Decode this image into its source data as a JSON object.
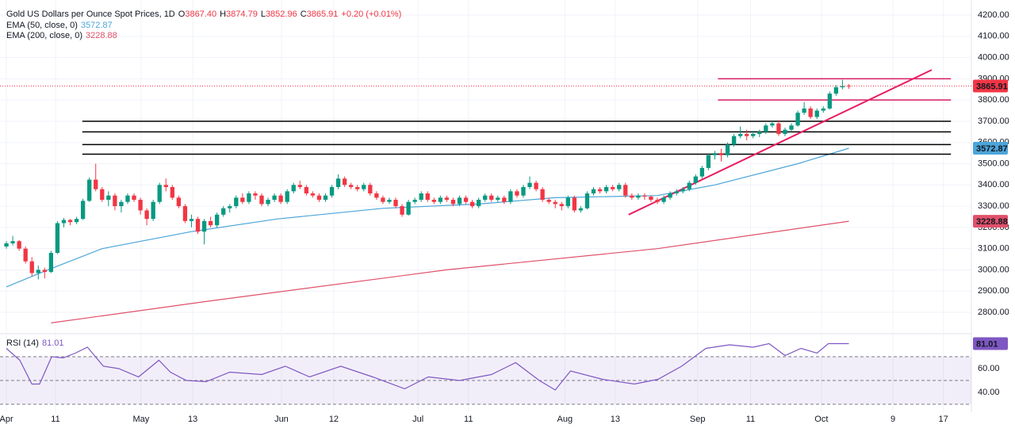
{
  "chart_data": {
    "type": "candlestick",
    "title": "Gold US Dollars per Ounce Spot Prices, 1D",
    "ohlc_prefixes": [
      "O",
      "H",
      "L",
      "C"
    ],
    "ohlc_labels": [
      "3867.40",
      "3874.79",
      "3852.96",
      "3865.91"
    ],
    "change": "+0.20 (+0.01%)",
    "up_color": "#089981",
    "down_color": "#f23645",
    "xlim": [
      -1,
      151.2
    ],
    "ylim": [
      2703,
      4271
    ],
    "yticks": [
      {
        "value": 2800,
        "label": "2800.00"
      },
      {
        "value": 2900,
        "label": "2900.00"
      },
      {
        "value": 3000,
        "label": "3000.00"
      },
      {
        "value": 3100,
        "label": "3100.00"
      },
      {
        "value": 3200,
        "label": "3200.00"
      },
      {
        "value": 3300,
        "label": "3300.00"
      },
      {
        "value": 3400,
        "label": "3400.00"
      },
      {
        "value": 3500,
        "label": "3500.00"
      },
      {
        "value": 3600,
        "label": "3600.00"
      },
      {
        "value": 3700,
        "label": "3700.00"
      },
      {
        "value": 3800,
        "label": "3800.00"
      },
      {
        "value": 3900,
        "label": "3900.00"
      },
      {
        "value": 4000,
        "label": "4000.00"
      },
      {
        "value": 4100,
        "label": "4100.00"
      },
      {
        "value": 4200,
        "label": "4200.00"
      }
    ],
    "xticks": [
      {
        "value": 0,
        "label": "Apr"
      },
      {
        "value": 7.7,
        "label": "11"
      },
      {
        "value": 21.1,
        "label": "May"
      },
      {
        "value": 29.2,
        "label": "13"
      },
      {
        "value": 43.1,
        "label": "Jun"
      },
      {
        "value": 51.3,
        "label": "12"
      },
      {
        "value": 64.5,
        "label": "Jul"
      },
      {
        "value": 72.4,
        "label": "11"
      },
      {
        "value": 87.5,
        "label": "Aug"
      },
      {
        "value": 95.4,
        "label": "13"
      },
      {
        "value": 108.3,
        "label": "Sep"
      },
      {
        "value": 116.6,
        "label": "11"
      },
      {
        "value": 127.7,
        "label": "Oct"
      },
      {
        "value": 138.9,
        "label": "9"
      },
      {
        "value": 146.8,
        "label": "17"
      }
    ],
    "ohlc": [
      [
        3110,
        3135,
        3100,
        3125
      ],
      [
        3125,
        3160,
        3115,
        3135
      ],
      [
        3135,
        3140,
        3090,
        3100
      ],
      [
        3100,
        3110,
        3030,
        3040
      ],
      [
        3040,
        3060,
        2970,
        2985
      ],
      [
        2985,
        3020,
        2955,
        3000
      ],
      [
        3000,
        3010,
        2960,
        2990
      ],
      [
        2990,
        3090,
        2985,
        3080
      ],
      [
        3080,
        3230,
        3075,
        3220
      ],
      [
        3220,
        3245,
        3200,
        3235
      ],
      [
        3235,
        3240,
        3210,
        3225
      ],
      [
        3225,
        3250,
        3215,
        3240
      ],
      [
        3240,
        3335,
        3235,
        3325
      ],
      [
        3325,
        3435,
        3320,
        3425
      ],
      [
        3425,
        3500,
        3370,
        3380
      ],
      [
        3380,
        3390,
        3320,
        3330
      ],
      [
        3330,
        3370,
        3300,
        3350
      ],
      [
        3350,
        3360,
        3280,
        3300
      ],
      [
        3300,
        3330,
        3270,
        3320
      ],
      [
        3320,
        3360,
        3310,
        3350
      ],
      [
        3350,
        3360,
        3320,
        3330
      ],
      [
        3330,
        3340,
        3260,
        3280
      ],
      [
        3280,
        3290,
        3210,
        3240
      ],
      [
        3240,
        3330,
        3230,
        3320
      ],
      [
        3320,
        3410,
        3310,
        3400
      ],
      [
        3400,
        3430,
        3370,
        3390
      ],
      [
        3390,
        3400,
        3330,
        3340
      ],
      [
        3340,
        3350,
        3290,
        3300
      ],
      [
        3300,
        3310,
        3220,
        3230
      ],
      [
        3230,
        3260,
        3200,
        3240
      ],
      [
        3240,
        3250,
        3170,
        3180
      ],
      [
        3180,
        3240,
        3120,
        3230
      ],
      [
        3230,
        3250,
        3200,
        3210
      ],
      [
        3210,
        3270,
        3200,
        3260
      ],
      [
        3260,
        3300,
        3250,
        3290
      ],
      [
        3290,
        3310,
        3270,
        3300
      ],
      [
        3300,
        3350,
        3290,
        3340
      ],
      [
        3340,
        3360,
        3310,
        3320
      ],
      [
        3320,
        3370,
        3310,
        3360
      ],
      [
        3360,
        3370,
        3330,
        3350
      ],
      [
        3350,
        3360,
        3300,
        3310
      ],
      [
        3310,
        3340,
        3300,
        3330
      ],
      [
        3330,
        3360,
        3320,
        3350
      ],
      [
        3350,
        3360,
        3310,
        3320
      ],
      [
        3320,
        3380,
        3310,
        3370
      ],
      [
        3370,
        3410,
        3360,
        3400
      ],
      [
        3400,
        3420,
        3380,
        3390
      ],
      [
        3390,
        3400,
        3350,
        3360
      ],
      [
        3360,
        3370,
        3340,
        3350
      ],
      [
        3350,
        3360,
        3320,
        3330
      ],
      [
        3330,
        3360,
        3320,
        3350
      ],
      [
        3350,
        3400,
        3340,
        3390
      ],
      [
        3390,
        3450,
        3380,
        3430
      ],
      [
        3430,
        3440,
        3390,
        3400
      ],
      [
        3400,
        3410,
        3380,
        3390
      ],
      [
        3390,
        3400,
        3370,
        3380
      ],
      [
        3380,
        3410,
        3370,
        3400
      ],
      [
        3400,
        3410,
        3350,
        3360
      ],
      [
        3360,
        3370,
        3330,
        3340
      ],
      [
        3340,
        3350,
        3310,
        3320
      ],
      [
        3320,
        3340,
        3310,
        3330
      ],
      [
        3330,
        3340,
        3290,
        3300
      ],
      [
        3300,
        3310,
        3250,
        3260
      ],
      [
        3260,
        3330,
        3255,
        3320
      ],
      [
        3320,
        3340,
        3310,
        3330
      ],
      [
        3330,
        3370,
        3320,
        3360
      ],
      [
        3360,
        3370,
        3320,
        3330
      ],
      [
        3330,
        3340,
        3310,
        3320
      ],
      [
        3320,
        3350,
        3310,
        3340
      ],
      [
        3340,
        3350,
        3320,
        3330
      ],
      [
        3330,
        3340,
        3300,
        3310
      ],
      [
        3310,
        3350,
        3300,
        3340
      ],
      [
        3340,
        3350,
        3310,
        3320
      ],
      [
        3320,
        3330,
        3290,
        3300
      ],
      [
        3300,
        3340,
        3290,
        3330
      ],
      [
        3330,
        3360,
        3320,
        3350
      ],
      [
        3350,
        3360,
        3320,
        3330
      ],
      [
        3330,
        3350,
        3320,
        3340
      ],
      [
        3340,
        3350,
        3310,
        3320
      ],
      [
        3320,
        3380,
        3310,
        3370
      ],
      [
        3370,
        3380,
        3340,
        3350
      ],
      [
        3350,
        3400,
        3340,
        3390
      ],
      [
        3390,
        3440,
        3380,
        3410
      ],
      [
        3410,
        3420,
        3370,
        3380
      ],
      [
        3380,
        3390,
        3320,
        3330
      ],
      [
        3330,
        3340,
        3310,
        3320
      ],
      [
        3320,
        3330,
        3290,
        3310
      ],
      [
        3310,
        3320,
        3280,
        3300
      ],
      [
        3300,
        3350,
        3290,
        3340
      ],
      [
        3340,
        3350,
        3270,
        3280
      ],
      [
        3280,
        3300,
        3270,
        3290
      ],
      [
        3290,
        3370,
        3285,
        3360
      ],
      [
        3360,
        3390,
        3350,
        3380
      ],
      [
        3380,
        3390,
        3360,
        3370
      ],
      [
        3370,
        3400,
        3360,
        3390
      ],
      [
        3390,
        3400,
        3370,
        3380
      ],
      [
        3380,
        3410,
        3370,
        3400
      ],
      [
        3400,
        3410,
        3340,
        3350
      ],
      [
        3350,
        3360,
        3330,
        3340
      ],
      [
        3340,
        3360,
        3330,
        3350
      ],
      [
        3350,
        3360,
        3330,
        3345
      ],
      [
        3345,
        3350,
        3320,
        3330
      ],
      [
        3330,
        3340,
        3310,
        3320
      ],
      [
        3320,
        3350,
        3310,
        3340
      ],
      [
        3340,
        3370,
        3330,
        3360
      ],
      [
        3360,
        3380,
        3350,
        3370
      ],
      [
        3370,
        3390,
        3360,
        3380
      ],
      [
        3380,
        3420,
        3370,
        3410
      ],
      [
        3410,
        3450,
        3400,
        3440
      ],
      [
        3440,
        3490,
        3430,
        3480
      ],
      [
        3480,
        3550,
        3470,
        3540
      ],
      [
        3540,
        3560,
        3520,
        3550
      ],
      [
        3550,
        3570,
        3510,
        3540
      ],
      [
        3540,
        3600,
        3530,
        3590
      ],
      [
        3590,
        3640,
        3580,
        3630
      ],
      [
        3630,
        3675,
        3620,
        3640
      ],
      [
        3640,
        3660,
        3610,
        3630
      ],
      [
        3630,
        3655,
        3620,
        3640
      ],
      [
        3640,
        3660,
        3625,
        3650
      ],
      [
        3650,
        3690,
        3640,
        3680
      ],
      [
        3680,
        3700,
        3670,
        3690
      ],
      [
        3690,
        3705,
        3630,
        3640
      ],
      [
        3640,
        3670,
        3630,
        3660
      ],
      [
        3660,
        3690,
        3650,
        3680
      ],
      [
        3680,
        3750,
        3675,
        3740
      ],
      [
        3740,
        3790,
        3730,
        3760
      ],
      [
        3760,
        3770,
        3710,
        3720
      ],
      [
        3720,
        3760,
        3710,
        3750
      ],
      [
        3750,
        3770,
        3740,
        3760
      ],
      [
        3760,
        3840,
        3755,
        3830
      ],
      [
        3830,
        3870,
        3820,
        3860
      ],
      [
        3860,
        3895,
        3850,
        3865.71
      ],
      [
        3867.4,
        3874.79,
        3852.96,
        3865.91
      ]
    ],
    "series": [
      {
        "name": "EMA (50, close, 0)",
        "color": "#4ca5d9",
        "x": [
          0,
          6.5,
          15,
          29,
          42.5,
          59,
          74,
          86,
          102,
          111,
          124,
          132
        ],
        "values": [
          2920,
          3000,
          3100,
          3180,
          3240,
          3290,
          3310,
          3340,
          3350,
          3400,
          3500,
          3572.87
        ]
      },
      {
        "name": "EMA (200, close, 0)",
        "color": "#e0506a",
        "x": [
          7,
          31,
          69,
          102,
          132
        ],
        "values": [
          2750,
          2850,
          3000,
          3100,
          3228.88
        ]
      }
    ],
    "levels": [
      {
        "value": 3700,
        "color": "#000000",
        "x": [
          11.9,
          148
        ]
      },
      {
        "value": 3650,
        "color": "#000000",
        "x": [
          11.9,
          148
        ]
      },
      {
        "value": 3590,
        "color": "#000000",
        "x": [
          11.9,
          148
        ]
      },
      {
        "value": 3545,
        "color": "#000000",
        "x": [
          11.9,
          148
        ]
      },
      {
        "value": 3900,
        "color": "#d81b60",
        "x": [
          111.5,
          148
        ]
      },
      {
        "value": 3800,
        "color": "#d81b60",
        "x": [
          111.5,
          148
        ]
      }
    ],
    "trendline": {
      "color": "#e91e63",
      "x": [
        97.5,
        145
      ],
      "values": [
        3260,
        3942
      ]
    },
    "rsi": {
      "name": "RSI (14)",
      "color": "#7e57c2",
      "ylim": [
        23.3,
        90
      ],
      "bands": [
        70,
        50,
        30
      ],
      "yticks": [
        {
          "value": 60,
          "label": "60.00"
        },
        {
          "value": 40,
          "label": "40.00"
        }
      ],
      "x": [
        0,
        2.1,
        4,
        5.2,
        7.1,
        8.9,
        10.8,
        12.7,
        15.2,
        17.6,
        20.7,
        23.9,
        25.7,
        28.2,
        31.3,
        35,
        40,
        43.7,
        47.5,
        52.4,
        57.4,
        62.4,
        66.1,
        71,
        76,
        79.8,
        83.5,
        86,
        88.4,
        93.4,
        98.4,
        102.1,
        105.8,
        109.6,
        113.3,
        117,
        119.5,
        122,
        124.5,
        127,
        128.8,
        132
      ],
      "values": [
        77,
        67,
        47,
        47,
        70,
        69,
        73,
        78,
        62,
        60,
        53,
        67,
        57,
        50,
        49,
        57,
        55,
        62,
        53,
        62,
        53,
        43,
        53,
        50,
        55,
        65,
        50,
        42,
        58,
        51,
        47,
        51,
        62,
        77,
        80,
        78,
        81,
        71,
        77,
        73,
        81,
        81.01
      ]
    }
  }
}
